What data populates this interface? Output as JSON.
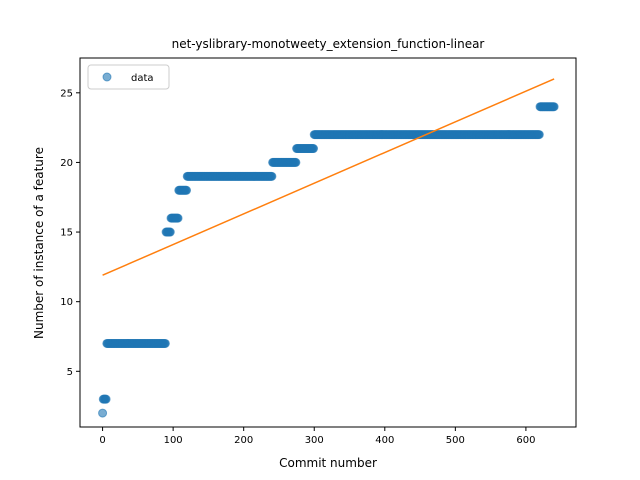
{
  "chart_data": {
    "type": "scatter",
    "title": "net-yslibrary-monotweety_extension_function-linear",
    "xlabel": "Commit number",
    "ylabel": "Number of instance of a feature",
    "xlim": [
      -32,
      671
    ],
    "ylim": [
      1.0,
      27.5
    ],
    "xticks": [
      0,
      100,
      200,
      300,
      400,
      500,
      600
    ],
    "yticks": [
      5,
      10,
      15,
      20,
      25
    ],
    "grid": false,
    "legend_position": "top-left",
    "series": [
      {
        "name": "data",
        "kind": "scatter",
        "color": "#1f77b4",
        "segments": [
          {
            "x_start": 0,
            "x_end": 0,
            "y": 2
          },
          {
            "x_start": 1,
            "x_end": 5,
            "y": 3
          },
          {
            "x_start": 6,
            "x_end": 89,
            "y": 7
          },
          {
            "x_start": 90,
            "x_end": 96,
            "y": 15
          },
          {
            "x_start": 97,
            "x_end": 107,
            "y": 16
          },
          {
            "x_start": 108,
            "x_end": 119,
            "y": 18
          },
          {
            "x_start": 120,
            "x_end": 240,
            "y": 19
          },
          {
            "x_start": 241,
            "x_end": 274,
            "y": 20
          },
          {
            "x_start": 275,
            "x_end": 299,
            "y": 21
          },
          {
            "x_start": 300,
            "x_end": 619,
            "y": 22
          },
          {
            "x_start": 620,
            "x_end": 640,
            "y": 24
          }
        ]
      },
      {
        "kind": "line",
        "color": "#ff7f0e",
        "x": [
          0,
          640
        ],
        "y": [
          11.9,
          26.0
        ]
      }
    ]
  }
}
